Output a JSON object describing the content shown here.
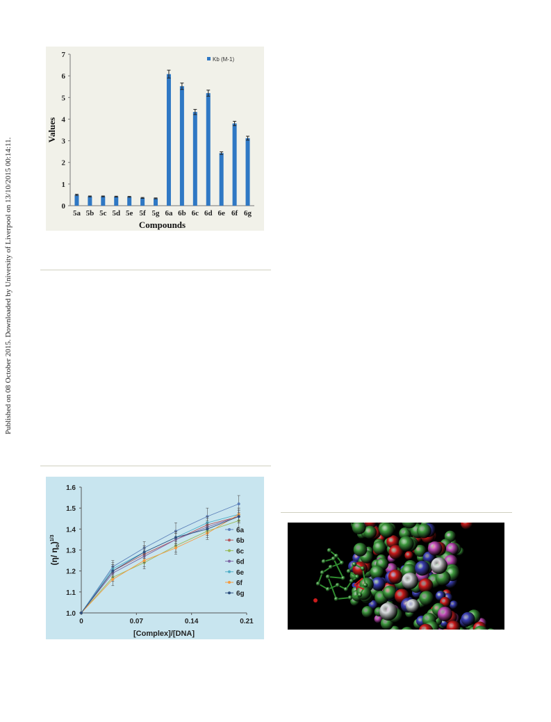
{
  "sidebar": {
    "text": "Published on 08 October 2015. Downloaded by University of Liverpool on 13/10/2015 00:14:11."
  },
  "chart_data": [
    {
      "type": "bar",
      "categories": [
        "5a",
        "5b",
        "5c",
        "5d",
        "5e",
        "5f",
        "5g",
        "6a",
        "6b",
        "6c",
        "6d",
        "6e",
        "6f",
        "6g"
      ],
      "series": [
        {
          "name": "Kb (M-1)",
          "values": [
            0.5,
            0.43,
            0.43,
            0.42,
            0.41,
            0.36,
            0.34,
            6.08,
            5.52,
            4.33,
            5.2,
            2.43,
            3.8,
            3.12
          ],
          "errors": [
            0.03,
            0.02,
            0.02,
            0.02,
            0.02,
            0.02,
            0.02,
            0.18,
            0.15,
            0.12,
            0.14,
            0.06,
            0.1,
            0.09
          ]
        }
      ],
      "xlabel": "Compounds",
      "ylabel": "Values",
      "ylim": [
        0,
        7
      ],
      "yticks": [
        0,
        1,
        2,
        3,
        4,
        5,
        6,
        7
      ],
      "legend_position": "top-right",
      "grid": false,
      "color": "#2f78c4"
    },
    {
      "type": "line",
      "x": [
        0,
        0.04,
        0.08,
        0.12,
        0.16,
        0.2
      ],
      "xticks": [
        "0",
        "0.07",
        "0.14",
        "0.21"
      ],
      "xtick_values": [
        0,
        0.07,
        0.14,
        0.21
      ],
      "xlim": [
        0,
        0.21
      ],
      "ylim": [
        1.0,
        1.6
      ],
      "yticks": [
        "1.0",
        "1.1",
        "1.2",
        "1.3",
        "1.4",
        "1.5",
        "1.6"
      ],
      "xlabel": "[Complex]/[DNA]",
      "ylabel_main": "(η/ η",
      "ylabel_sub": "o",
      "ylabel_close": ")",
      "ylabel_sup": "1/3",
      "legend_position": "right",
      "grid": false,
      "series": [
        {
          "name": "6a",
          "color": "#5b7fb9",
          "values": [
            1.0,
            1.22,
            1.31,
            1.39,
            1.46,
            1.52
          ],
          "errors": [
            0,
            0.03,
            0.03,
            0.04,
            0.04,
            0.04
          ]
        },
        {
          "name": "6b",
          "color": "#b4555a",
          "values": [
            1.0,
            1.2,
            1.28,
            1.35,
            1.42,
            1.46
          ],
          "errors": [
            0,
            0.03,
            0.03,
            0.03,
            0.03,
            0.03
          ]
        },
        {
          "name": "6c",
          "color": "#98b957",
          "values": [
            1.0,
            1.17,
            1.24,
            1.32,
            1.39,
            1.44
          ],
          "errors": [
            0,
            0.02,
            0.03,
            0.03,
            0.03,
            0.03
          ]
        },
        {
          "name": "6d",
          "color": "#7d66a4",
          "values": [
            1.0,
            1.19,
            1.27,
            1.35,
            1.41,
            1.46
          ],
          "errors": [
            0,
            0.03,
            0.03,
            0.03,
            0.03,
            0.03
          ]
        },
        {
          "name": "6e",
          "color": "#4eadc7",
          "values": [
            1.0,
            1.21,
            1.29,
            1.36,
            1.43,
            1.47
          ],
          "errors": [
            0,
            0.03,
            0.03,
            0.03,
            0.03,
            0.03
          ]
        },
        {
          "name": "6f",
          "color": "#f59a3e",
          "values": [
            1.0,
            1.16,
            1.25,
            1.31,
            1.38,
            1.47
          ],
          "errors": [
            0,
            0.03,
            0.03,
            0.03,
            0.03,
            0.03
          ]
        },
        {
          "name": "6g",
          "color": "#2d4f7e",
          "values": [
            1.0,
            1.2,
            1.29,
            1.36,
            1.4,
            1.46
          ],
          "errors": [
            0,
            0.03,
            0.03,
            0.03,
            0.03,
            0.03
          ]
        }
      ]
    }
  ],
  "molecular_image": {
    "palette": {
      "green": "#3f9b3f",
      "red": "#cc1c1c",
      "blue": "#3b3fb5",
      "magenta": "#c04bb8",
      "white": "#d8dbde",
      "bond": "#2e8b2e"
    }
  }
}
